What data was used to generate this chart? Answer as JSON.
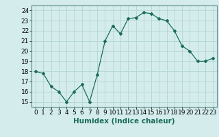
{
  "x": [
    0,
    1,
    2,
    3,
    4,
    5,
    6,
    7,
    8,
    9,
    10,
    11,
    12,
    13,
    14,
    15,
    16,
    17,
    18,
    19,
    20,
    21,
    22,
    23
  ],
  "y": [
    18.0,
    17.8,
    16.5,
    16.0,
    15.0,
    16.0,
    16.7,
    15.0,
    17.7,
    21.0,
    22.5,
    21.7,
    23.2,
    23.3,
    23.8,
    23.7,
    23.2,
    23.0,
    22.0,
    20.5,
    20.0,
    19.0,
    19.0,
    19.3
  ],
  "line_color": "#1a6b5a",
  "marker_color": "#1a6b5a",
  "bg_color": "#d4edec",
  "grid_color": "#b8d8d4",
  "xlabel": "Humidex (Indice chaleur)",
  "xlim": [
    -0.5,
    23.5
  ],
  "ylim": [
    14.5,
    24.5
  ],
  "yticks": [
    15,
    16,
    17,
    18,
    19,
    20,
    21,
    22,
    23,
    24
  ],
  "xtick_labels": [
    "0",
    "1",
    "2",
    "3",
    "4",
    "5",
    "6",
    "7",
    "8",
    "9",
    "10",
    "11",
    "12",
    "13",
    "14",
    "15",
    "16",
    "17",
    "18",
    "19",
    "20",
    "21",
    "22",
    "23"
  ],
  "label_fontsize": 7.5,
  "tick_fontsize": 6.5
}
